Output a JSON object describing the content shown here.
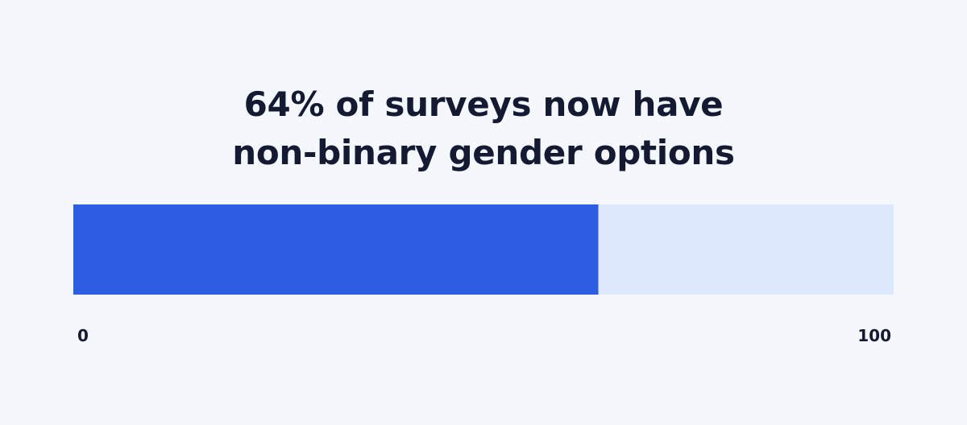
{
  "title_lines": [
    "64% of surveys now have",
    "non-binary gender options"
  ],
  "colors": {
    "background": "#f4f8fd",
    "fill": "#2d5de3",
    "track": "#dce8fb",
    "text": "#151a33"
  },
  "chart_data": {
    "type": "bar",
    "orientation": "horizontal",
    "title": "64% of surveys now have non-binary gender options",
    "values": [
      64
    ],
    "xlim": [
      0,
      100
    ],
    "tick_labels": [
      "0",
      "100"
    ],
    "grid": false
  }
}
